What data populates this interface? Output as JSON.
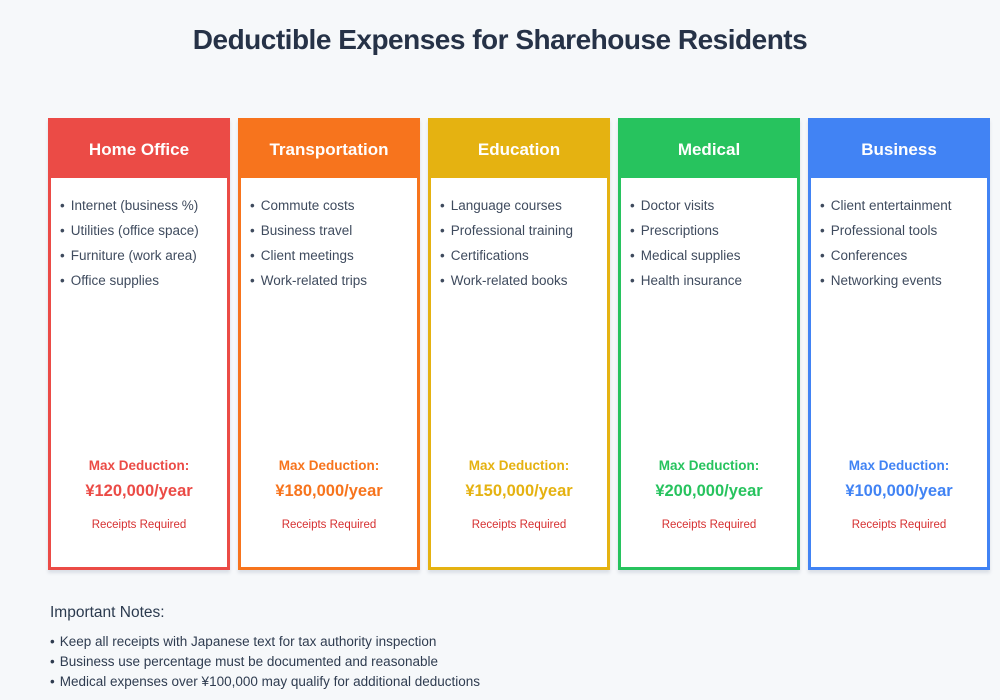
{
  "page": {
    "title": "Deductible Expenses for Sharehouse Residents",
    "background": "#F6F8FA",
    "title_color": "#263247"
  },
  "glyphs": {
    "bullet": "•"
  },
  "colors": {
    "receipts_red": "#D63031",
    "list_text": "#3F4B5E",
    "header_text": "#FFFFFF"
  },
  "cards": [
    {
      "name": "Home Office",
      "color": "#EB4B46",
      "items": [
        "Internet (business %)",
        "Utilities (office space)",
        "Furniture (work area)",
        "Office supplies"
      ],
      "max_label": "Max Deduction:",
      "max_amount": "¥120,000/year",
      "receipts": "Receipts Required"
    },
    {
      "name": "Transportation",
      "color": "#F7741D",
      "items": [
        "Commute costs",
        "Business travel",
        "Client meetings",
        "Work-related trips"
      ],
      "max_label": "Max Deduction:",
      "max_amount": "¥180,000/year",
      "receipts": "Receipts Required"
    },
    {
      "name": "Education",
      "color": "#E5B211",
      "items": [
        "Language courses",
        "Professional training",
        "Certifications",
        "Work-related books"
      ],
      "max_label": "Max Deduction:",
      "max_amount": "¥150,000/year",
      "receipts": "Receipts Required"
    },
    {
      "name": "Medical",
      "color": "#27C35E",
      "items": [
        "Doctor visits",
        "Prescriptions",
        "Medical supplies",
        "Health insurance"
      ],
      "max_label": "Max Deduction:",
      "max_amount": "¥200,000/year",
      "receipts": "Receipts Required"
    },
    {
      "name": "Business",
      "color": "#4183F4",
      "items": [
        "Client entertainment",
        "Professional tools",
        "Conferences",
        "Networking events"
      ],
      "max_label": "Max Deduction:",
      "max_amount": "¥100,000/year",
      "receipts": "Receipts Required"
    }
  ],
  "notes": {
    "heading": "Important Notes:",
    "items": [
      "Keep all receipts with Japanese text for tax authority inspection",
      "Business use percentage must be documented and reasonable",
      "Medical expenses over ¥100,000 may qualify for additional deductions"
    ]
  }
}
